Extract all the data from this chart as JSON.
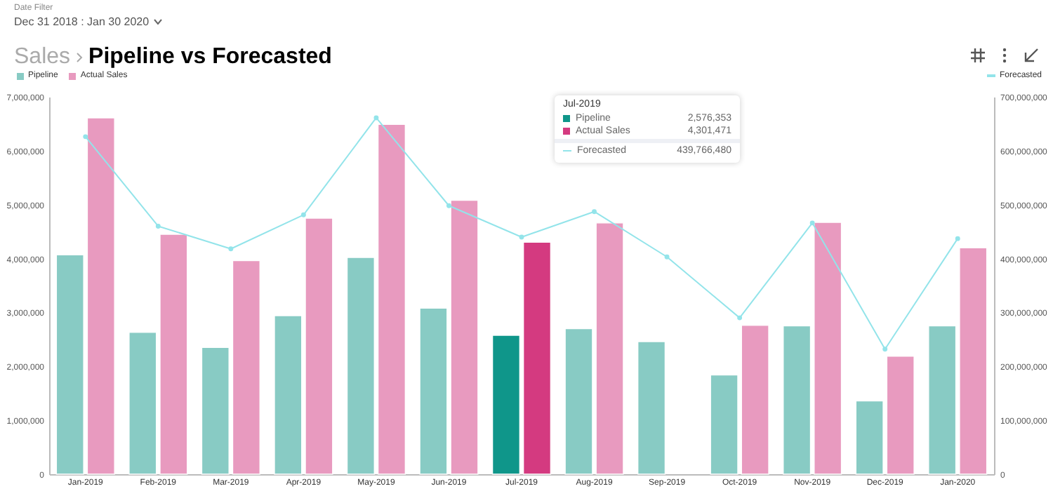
{
  "chart_data": {
    "type": "bar",
    "title": "Pipeline vs Forecasted",
    "subtitle": "Sales",
    "annotations": [
      "Date Filter",
      "Dec 31 2018 : Jan 30 2020",
      "Jul-2019",
      "Pipeline",
      "2,576,353",
      "Actual Sales",
      "4,301,471",
      "Forecasted",
      "439,766,480"
    ],
    "categories": [
      "Jan-2019",
      "Feb-2019",
      "Mar-2019",
      "Apr-2019",
      "May-2019",
      "Jun-2019",
      "Jul-2019",
      "Aug-2019",
      "Sep-2019",
      "Oct-2019",
      "Nov-2019",
      "Dec-2019",
      "Jan-2020"
    ],
    "series": [
      {
        "name": "Pipeline",
        "color": "#88cbc4",
        "colors": [
          "#88cbc4",
          "#88cbc4",
          "#88cbc4",
          "#88cbc4",
          "#88cbc4",
          "#88cbc4",
          "#0f968a",
          "#88cbc4",
          "#88cbc4",
          "#88cbc4",
          "#88cbc4",
          "#88cbc4",
          "#88cbc4"
        ],
        "values": [
          4070000,
          2630000,
          2350000,
          2940000,
          4020000,
          3080000,
          2576353,
          2700000,
          2460000,
          1840000,
          2750000,
          1360000,
          2750000
        ]
      },
      {
        "name": "Actual Sales",
        "color": "#e89abf",
        "colors": [
          "#e89abf",
          "#e89abf",
          "#e89abf",
          "#e89abf",
          "#e89abf",
          "#e89abf",
          "#d43a80",
          "#e89abf",
          "#e89abf",
          "#e89abf",
          "#e89abf",
          "#e89abf",
          "#e89abf"
        ],
        "values": [
          6610000,
          4450000,
          3960000,
          4750000,
          6490000,
          5080000,
          4301471,
          4660000,
          null,
          2760000,
          4670000,
          2190000,
          4200000
        ]
      },
      {
        "name": "Forecasted",
        "type": "line",
        "axis": "y2",
        "color": "#93e4ea",
        "values": [
          626000000,
          460000000,
          418000000,
          481000000,
          661000000,
          498000000,
          439766480,
          487000000,
          403000000,
          290000000,
          466000000,
          232000000,
          437000000
        ]
      }
    ],
    "ylim": [
      0,
      7000000
    ],
    "yticks": [
      0,
      {
        "value": 1000000,
        "label": "1,000,000"
      },
      {
        "value": 2000000,
        "label": "2,000,000"
      },
      {
        "value": 3000000,
        "label": "3,000,000"
      },
      {
        "value": 4000000,
        "label": "4,000,000"
      },
      {
        "value": 5000000,
        "label": "5,000,000"
      },
      {
        "value": 6000000,
        "label": "6,000,000"
      },
      {
        "value": 7000000,
        "label": "7,000,000"
      }
    ],
    "y2lim": [
      0,
      700000000
    ],
    "y2ticks": [
      0,
      {
        "value": 100000000,
        "label": "100,000,000"
      },
      {
        "value": 200000000,
        "label": "200,000,000"
      },
      {
        "value": 300000000,
        "label": "300,000,000"
      },
      {
        "value": 400000000,
        "label": "400,000,000"
      },
      {
        "value": 500000000,
        "label": "500,000,000"
      },
      {
        "value": 600000000,
        "label": "600,000,000"
      },
      {
        "value": 700000000,
        "label": "700,000,000"
      }
    ],
    "grid": false,
    "legend": "top",
    "marker": "circle",
    "line_style": "solid"
  }
}
